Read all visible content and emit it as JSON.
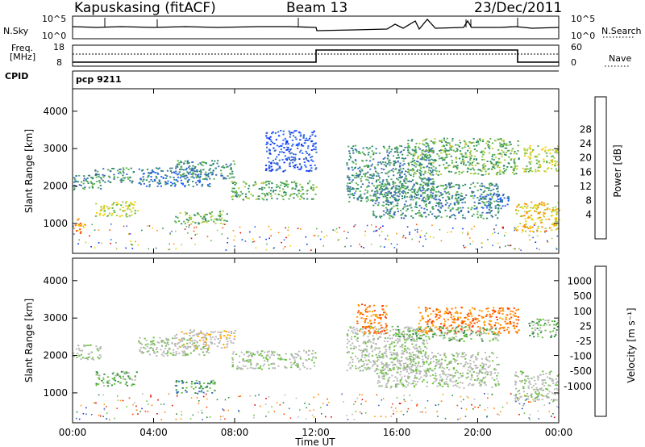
{
  "header": {
    "station": "Kapuskasing (fitACF)",
    "beam": "Beam 13",
    "date": "23/Dec/2011"
  },
  "top_strips": {
    "nsky_label": "N.Sky",
    "nsky_ticks": [
      "10^5",
      "10^0"
    ],
    "nsearch_label": "N.Search",
    "freq_label_1": "Freq.",
    "freq_label_2": "[MHz]",
    "freq_ticks": [
      "18",
      "8"
    ],
    "nave_label": "Nave",
    "nave_ticks": [
      "60",
      "0"
    ],
    "cpid_label": "CPID",
    "cpid_value": "pcp 9211"
  },
  "chart_data": [
    {
      "type": "heatmap",
      "name": "power",
      "ylabel": "Slant Range [km]",
      "xlabel": "",
      "x_ticks": [
        "00:00",
        "04:00",
        "08:00",
        "12:00",
        "16:00",
        "20:00",
        "00:00"
      ],
      "y_ticks": [
        1000,
        2000,
        3000,
        4000
      ],
      "ylim": [
        200,
        4600
      ],
      "xlim_hours": [
        0,
        24
      ],
      "colorbar": {
        "label": "Power [dB]",
        "ticks": [
          "4",
          "8",
          "12",
          "16",
          "20",
          "24",
          "28"
        ],
        "colors": [
          "#0028ff",
          "#2060ff",
          "#3a6ab8",
          "#2c8a6a",
          "#58b04e",
          "#b0cc3a",
          "#f0d000",
          "#ff8a00",
          "#ff4a00",
          "#e00000"
        ]
      },
      "echo_regions": [
        {
          "t": [
            0.0,
            1.4
          ],
          "r": [
            1900,
            2300
          ],
          "level": 3
        },
        {
          "t": [
            1.0,
            3.0
          ],
          "r": [
            2100,
            2500
          ],
          "level": 3
        },
        {
          "t": [
            0.1,
            0.6
          ],
          "r": [
            750,
            1150
          ],
          "level": 7
        },
        {
          "t": [
            1.1,
            3.2
          ],
          "r": [
            1200,
            1600
          ],
          "level": 5
        },
        {
          "t": [
            3.2,
            6.8
          ],
          "r": [
            2000,
            2500
          ],
          "level": 2
        },
        {
          "t": [
            5.0,
            8.0
          ],
          "r": [
            2200,
            2700
          ],
          "level": 3
        },
        {
          "t": [
            5.0,
            7.6
          ],
          "r": [
            1000,
            1350
          ],
          "level": 4
        },
        {
          "t": [
            7.8,
            12.0
          ],
          "r": [
            1650,
            2150
          ],
          "level": 4
        },
        {
          "t": [
            9.5,
            12.0
          ],
          "r": [
            2400,
            3500
          ],
          "level": 1
        },
        {
          "t": [
            13.5,
            17.8
          ],
          "r": [
            1600,
            3100
          ],
          "level": 3
        },
        {
          "t": [
            16.5,
            22.0
          ],
          "r": [
            2300,
            3300
          ],
          "level": 4
        },
        {
          "t": [
            14.8,
            21.0
          ],
          "r": [
            1150,
            2100
          ],
          "level": 3
        },
        {
          "t": [
            19.8,
            21.5
          ],
          "r": [
            1400,
            1800
          ],
          "level": 2
        },
        {
          "t": [
            21.8,
            24.0
          ],
          "r": [
            800,
            1600
          ],
          "level": 6
        },
        {
          "t": [
            22.2,
            24.0
          ],
          "r": [
            2400,
            3100
          ],
          "level": 5
        }
      ]
    },
    {
      "type": "heatmap",
      "name": "velocity",
      "ylabel": "Slant Range [km]",
      "xlabel": "Time UT",
      "x_ticks": [
        "00:00",
        "04:00",
        "08:00",
        "12:00",
        "16:00",
        "20:00",
        "00:00"
      ],
      "y_ticks": [
        1000,
        2000,
        3000,
        4000
      ],
      "ylim": [
        200,
        4600
      ],
      "xlim_hours": [
        0,
        24
      ],
      "colorbar": {
        "label": "Velocity [m s⁻¹]",
        "ticks": [
          "1000",
          "500",
          "100",
          "25",
          "-25",
          "-100",
          "-500",
          "-1000"
        ],
        "colors": [
          "#1838c8",
          "#3868c8",
          "#2a8a3a",
          "#6ac040",
          "#b8b8b8",
          "#b8b8b8",
          "#ffa000",
          "#ff7800",
          "#ff4000",
          "#e00000"
        ]
      },
      "echo_regions": [
        {
          "t": [
            0.0,
            1.4
          ],
          "r": [
            1900,
            2300
          ],
          "level": 4
        },
        {
          "t": [
            1.1,
            3.2
          ],
          "r": [
            1200,
            1600
          ],
          "level": 3
        },
        {
          "t": [
            3.2,
            6.8
          ],
          "r": [
            2000,
            2500
          ],
          "level": 4
        },
        {
          "t": [
            5.0,
            8.0
          ],
          "r": [
            2200,
            2700
          ],
          "level": 5
        },
        {
          "t": [
            5.0,
            7.0
          ],
          "r": [
            1000,
            1350
          ],
          "level": 2
        },
        {
          "t": [
            7.8,
            12.0
          ],
          "r": [
            1650,
            2150
          ],
          "level": 4
        },
        {
          "t": [
            13.5,
            17.5
          ],
          "r": [
            1600,
            2800
          ],
          "level": 4
        },
        {
          "t": [
            14.0,
            15.5
          ],
          "r": [
            2600,
            3400
          ],
          "level": 7
        },
        {
          "t": [
            17.0,
            22.0
          ],
          "r": [
            2600,
            3300
          ],
          "level": 7
        },
        {
          "t": [
            16.0,
            21.0
          ],
          "r": [
            2400,
            2800
          ],
          "level": 3
        },
        {
          "t": [
            15.0,
            21.0
          ],
          "r": [
            1150,
            2100
          ],
          "level": 4
        },
        {
          "t": [
            21.8,
            24.0
          ],
          "r": [
            800,
            1600
          ],
          "level": 4
        },
        {
          "t": [
            22.5,
            24.0
          ],
          "r": [
            2500,
            3000
          ],
          "level": 3
        }
      ]
    }
  ]
}
